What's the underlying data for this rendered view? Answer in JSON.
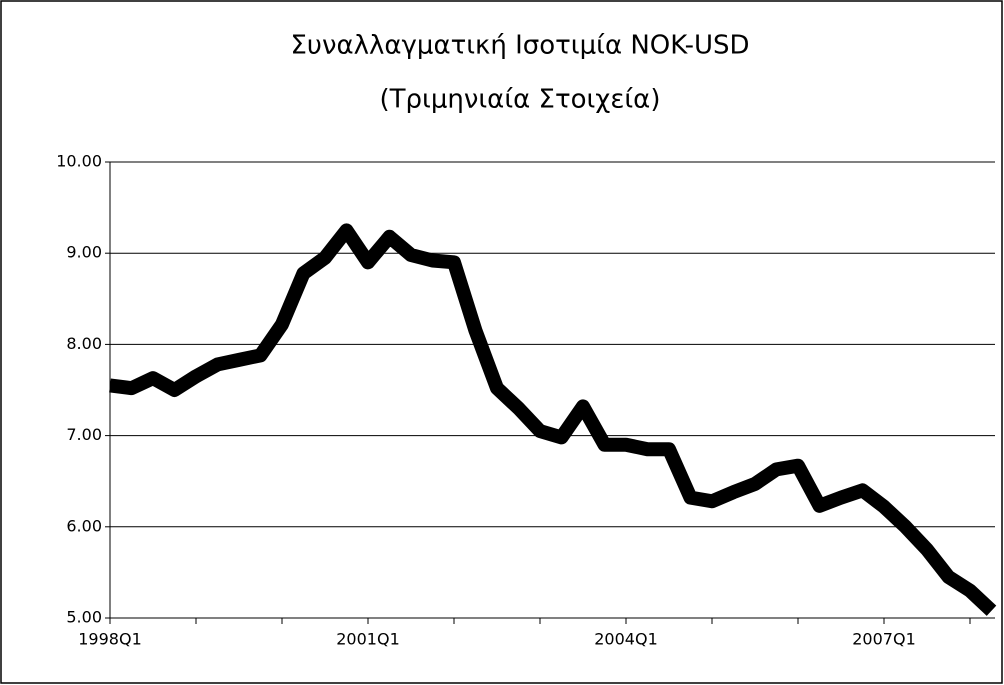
{
  "chart_data": {
    "type": "line",
    "title": "Συναλλαγματική Ισοτιμία NOK-USD",
    "subtitle": "(Τριμηνιαία Στοιχεία)",
    "categories": [
      "1998Q1",
      null,
      null,
      null,
      null,
      null,
      null,
      null,
      null,
      null,
      null,
      null,
      "2001Q1",
      null,
      null,
      null,
      null,
      null,
      null,
      null,
      null,
      null,
      null,
      null,
      "2004Q1",
      null,
      null,
      null,
      null,
      null,
      null,
      null,
      null,
      null,
      null,
      null,
      "2007Q1",
      null,
      null,
      null,
      null,
      null
    ],
    "series": [
      {
        "color": "#000000",
        "values": [
          7.55,
          7.52,
          7.63,
          7.5,
          7.65,
          7.78,
          7.83,
          7.88,
          8.22,
          8.78,
          8.95,
          9.25,
          8.9,
          9.18,
          8.98,
          8.92,
          8.9,
          8.15,
          7.52,
          7.3,
          7.05,
          6.98,
          7.32,
          6.9,
          6.9,
          6.85,
          6.85,
          6.32,
          6.28,
          6.38,
          6.47,
          6.63,
          6.67,
          6.23,
          6.32,
          6.4,
          6.22,
          6.0,
          5.75,
          5.45,
          5.3,
          5.08
        ]
      }
    ],
    "ylim": [
      5,
      10
    ],
    "yticks": [
      {
        "value": 5,
        "label": "5.00"
      },
      {
        "value": 6,
        "label": "6.00"
      },
      {
        "value": 7,
        "label": "7.00"
      },
      {
        "value": 8,
        "label": "8.00"
      },
      {
        "value": 9,
        "label": "9.00"
      },
      {
        "value": 10,
        "label": "10.00"
      }
    ],
    "grid": true
  }
}
